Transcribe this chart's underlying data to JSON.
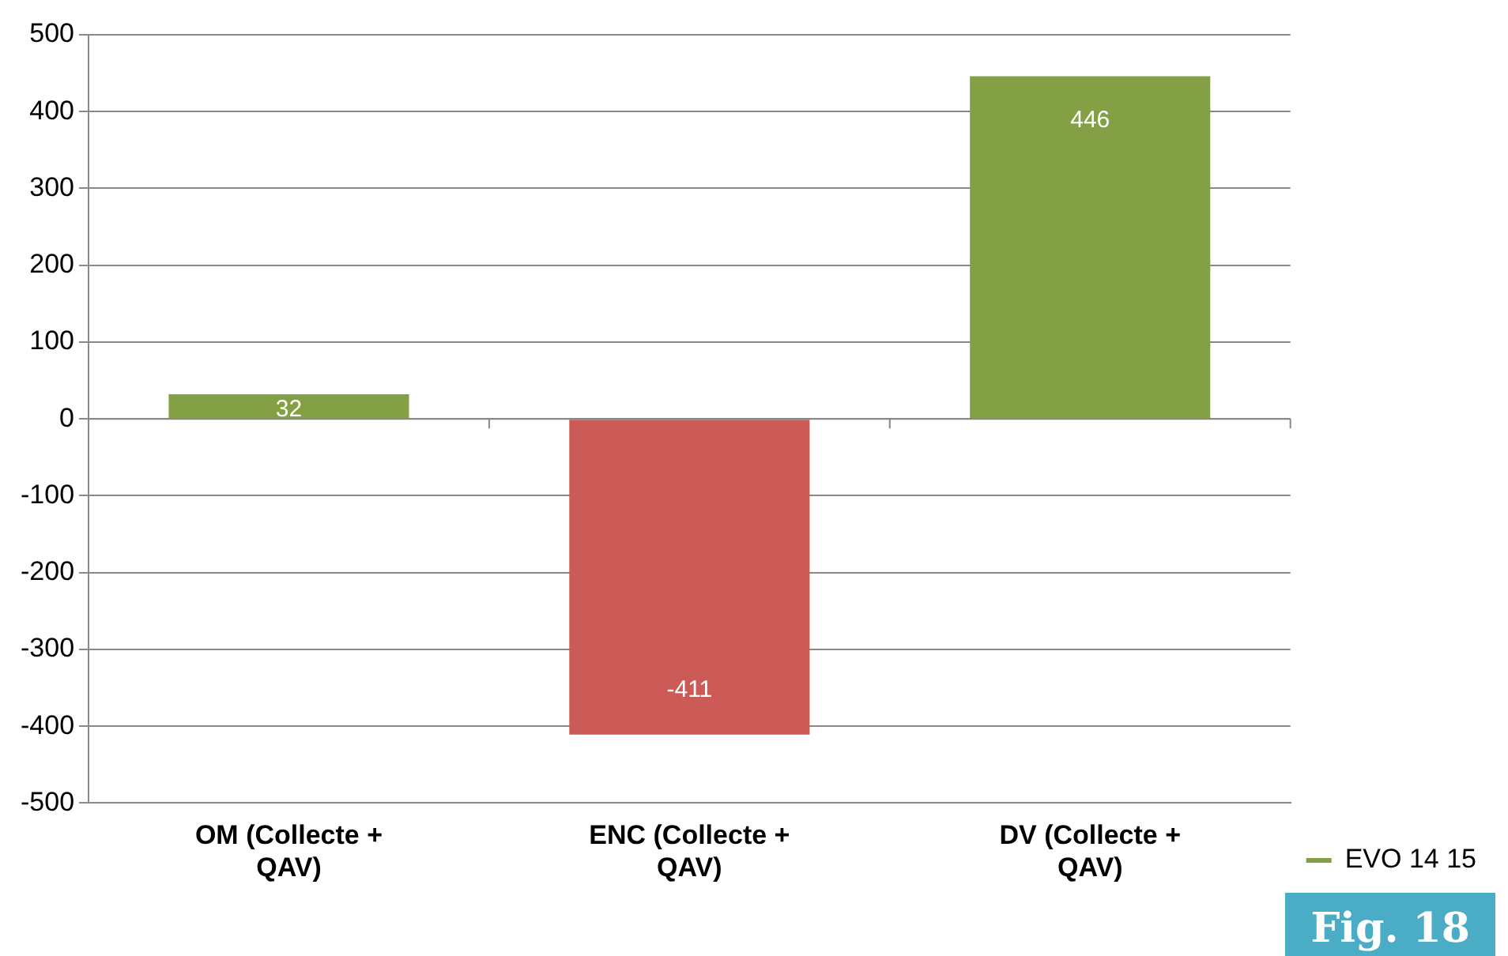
{
  "chart_data": {
    "type": "bar",
    "categories": [
      "OM (Collecte + QAV)",
      "ENC (Collecte + QAV)",
      "DV (Collecte + QAV)"
    ],
    "series": [
      {
        "name": "EVO 14 15",
        "colors": [
          "#83a045",
          "#cc5a56",
          "#83a045"
        ],
        "values": [
          32,
          -411,
          446
        ]
      }
    ],
    "ylim": [
      -500,
      500
    ],
    "yticks": [
      -500,
      -400,
      -300,
      -200,
      -100,
      0,
      100,
      200,
      300,
      400,
      500
    ],
    "grid": "y",
    "legend": "right",
    "data_labels": true,
    "annotations": [
      "Fig. 18"
    ]
  }
}
